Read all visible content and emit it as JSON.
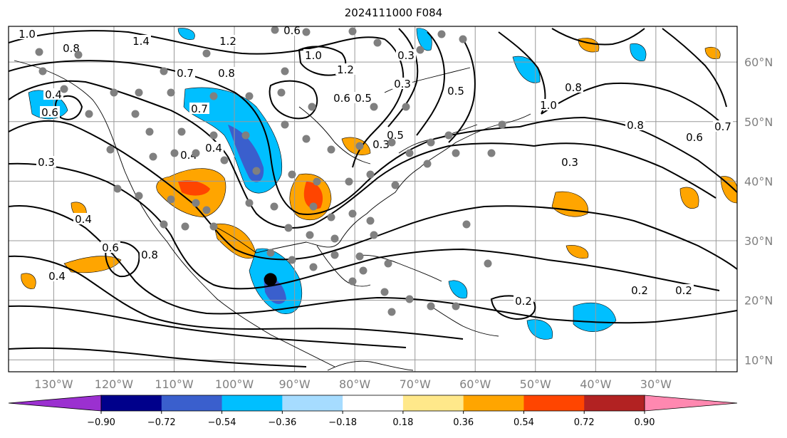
{
  "title": "2024111000 F084",
  "map": {
    "projection": "plate-carree",
    "lon_range": [
      -137.5,
      -16.5
    ],
    "lat_range": [
      8,
      66
    ],
    "lon_labels": [
      "130°W",
      "120°W",
      "110°W",
      "100°W",
      "90°W",
      "80°W",
      "70°W",
      "60°W",
      "50°W",
      "40°W",
      "30°W"
    ],
    "lat_labels": [
      "60°N",
      "50°N",
      "40°N",
      "30°N",
      "20°N",
      "10°N"
    ],
    "grid": true,
    "contour_labels": [
      "1.0",
      "0.8",
      "1.4",
      "1.2",
      "0.6",
      "1.0",
      "1.2",
      "0.3",
      "0.5",
      "0.3",
      "0.5",
      "0.4",
      "0.7",
      "0.8",
      "0.7",
      "0.4",
      "0.6",
      "0.6",
      "0.4",
      "0.3",
      "0.5",
      "1.0",
      "0.8",
      "0.8",
      "0.6",
      "0.7",
      "0.3",
      "0.3",
      "0.4",
      "0.4",
      "0.6",
      "0.8",
      "0.2",
      "0.2",
      "0.2"
    ],
    "marker": {
      "lon": -94,
      "lat": 23.5,
      "color": "#000000"
    },
    "station_color": "#808080"
  },
  "colorbar": {
    "ticks": [
      "−0.90",
      "−0.72",
      "−0.54",
      "−0.36",
      "−0.18",
      "0.18",
      "0.36",
      "0.54",
      "0.72",
      "0.90"
    ],
    "colors": [
      "#9b30d0",
      "#00008b",
      "#3a5fcd",
      "#00bfff",
      "#a6dcff",
      "#ffffff",
      "#ffe88a",
      "#ffa500",
      "#ff4500",
      "#b22222",
      "#ff88b0"
    ],
    "under_color": "#9b30d0",
    "over_color": "#ff88b0"
  }
}
